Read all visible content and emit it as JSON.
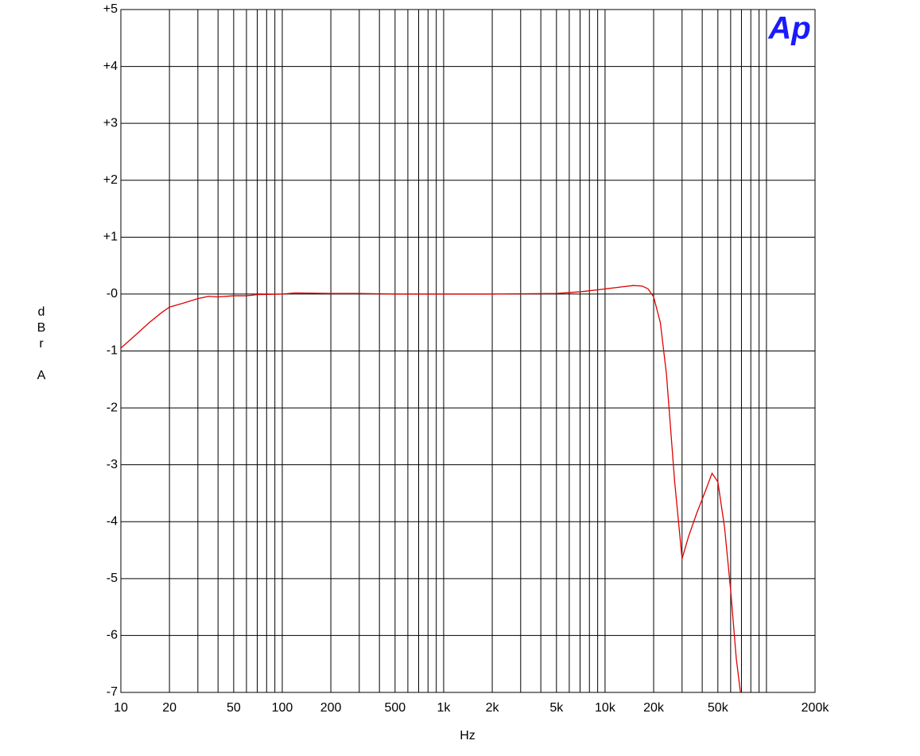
{
  "chart_data": {
    "type": "line",
    "logo": "Ap",
    "y_label": "dBr A",
    "x_label": "Hz",
    "xscale": "log",
    "xlim": [
      10,
      200000
    ],
    "ylim": [
      -7,
      5
    ],
    "grid": true,
    "xticks": [
      10,
      20,
      50,
      100,
      200,
      500,
      {
        "value": 1000,
        "label": "1k"
      },
      {
        "value": 2000,
        "label": "2k"
      },
      {
        "value": 5000,
        "label": "5k"
      },
      {
        "value": 10000,
        "label": "10k"
      },
      {
        "value": 20000,
        "label": "20k"
      },
      {
        "value": 50000,
        "label": "50k"
      },
      {
        "value": 200000,
        "label": "200k"
      }
    ],
    "x_minor_grid": [
      30,
      40,
      60,
      70,
      80,
      90,
      300,
      400,
      600,
      700,
      800,
      900,
      3000,
      4000,
      6000,
      7000,
      8000,
      9000,
      30000,
      40000,
      60000,
      70000,
      80000,
      90000,
      100000
    ],
    "yticks": [
      {
        "value": 5,
        "label": "+5"
      },
      {
        "value": 4,
        "label": "+4"
      },
      {
        "value": 3,
        "label": "+3"
      },
      {
        "value": 2,
        "label": "+2"
      },
      {
        "value": 1,
        "label": "+1"
      },
      {
        "value": 0,
        "label": "-0"
      },
      -1,
      -2,
      -3,
      -4,
      -5,
      -6,
      -7
    ],
    "x": [
      10,
      12,
      15,
      18,
      20,
      25,
      30,
      35,
      40,
      50,
      60,
      70,
      100,
      120,
      200,
      300,
      500,
      1000,
      2000,
      5000,
      7000,
      10000,
      13000,
      15000,
      17000,
      18500,
      20000,
      22000,
      24000,
      27000,
      30000,
      33000,
      37000,
      42000,
      46000,
      50000,
      55000,
      60000,
      65000,
      69000
    ],
    "series": [
      {
        "color": "#e00000",
        "values": [
          -0.95,
          -0.75,
          -0.5,
          -0.32,
          -0.23,
          -0.15,
          -0.08,
          -0.04,
          -0.05,
          -0.03,
          -0.03,
          -0.01,
          0.0,
          0.02,
          0.01,
          0.01,
          0.0,
          0.0,
          0.0,
          0.01,
          0.04,
          0.09,
          0.13,
          0.15,
          0.14,
          0.09,
          -0.05,
          -0.5,
          -1.4,
          -3.3,
          -4.65,
          -4.25,
          -3.85,
          -3.45,
          -3.15,
          -3.3,
          -4.1,
          -5.2,
          -6.4,
          -7.0
        ]
      }
    ]
  }
}
